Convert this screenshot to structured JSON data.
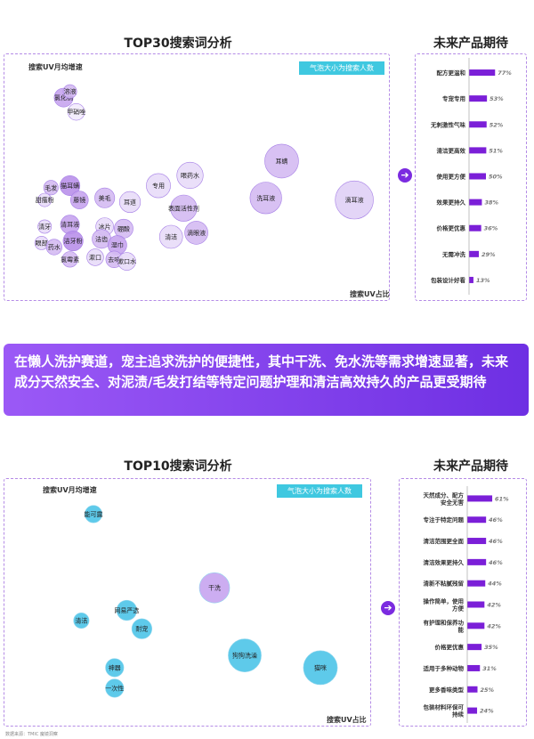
{
  "top30": {
    "title": "TOP30搜索词分析",
    "tag": "气泡大小为搜索人数",
    "ylabel": "搜索UV月均增速",
    "xlabel": "搜索UV占比"
  },
  "expect1": {
    "title": "未来产品期待",
    "items": [
      {
        "label": "配方更温和",
        "value": "77%",
        "v": 77
      },
      {
        "label": "专宠专用",
        "value": "53%",
        "v": 53
      },
      {
        "label": "无刺激性气味",
        "value": "52%",
        "v": 52
      },
      {
        "label": "清洁更高效",
        "value": "51%",
        "v": 51
      },
      {
        "label": "使用更方便",
        "value": "50%",
        "v": 50
      },
      {
        "label": "效果更持久",
        "value": "38%",
        "v": 38
      },
      {
        "label": "价格更优惠",
        "value": "36%",
        "v": 36
      },
      {
        "label": "无需冲洗",
        "value": "29%",
        "v": 29
      },
      {
        "label": "包装设计好看",
        "value": "13%",
        "v": 13
      }
    ]
  },
  "banner": "在懒人洗护赛道，宠主追求洗护的便捷性，其中干洗、免水洗等需求增速显著，未来成分天然安全、对泥渍/毛发打结等特定问题护理和清洁高效持久的产品更受期待",
  "top10": {
    "title": "TOP10搜索词分析",
    "tag": "气泡大小为搜索人数",
    "ylabel": "搜索UV月均增速",
    "xlabel": "搜索UV占比"
  },
  "expect2": {
    "title": "未来产品期待",
    "items": [
      {
        "label": "天然成分、配方安全无害",
        "value": "61%",
        "v": 61
      },
      {
        "label": "专注于特定问题",
        "value": "46%",
        "v": 46
      },
      {
        "label": "清洁范围更全面",
        "value": "46%",
        "v": 46
      },
      {
        "label": "清洁效果更持久",
        "value": "46%",
        "v": 46
      },
      {
        "label": "清新不粘腻残留",
        "value": "44%",
        "v": 44
      },
      {
        "label": "操作简单，使用方便",
        "value": "42%",
        "v": 42
      },
      {
        "label": "有护理和保养功能",
        "value": "42%",
        "v": 42
      },
      {
        "label": "价格更优惠",
        "value": "35%",
        "v": 35
      },
      {
        "label": "适用于多种动物",
        "value": "31%",
        "v": 31
      },
      {
        "label": "更多香味类型",
        "value": "25%",
        "v": 25
      },
      {
        "label": "包装材料环保可持续",
        "value": "24%",
        "v": 24
      }
    ]
  },
  "source": "数据来源：TMIC 魔镜洞察",
  "chart_data": [
    {
      "type": "scatter",
      "title": "TOP30搜索词分析",
      "xlabel": "搜索UV占比",
      "ylabel": "搜索UV月均增速",
      "bubble_size": "搜索人数",
      "points": [
        {
          "label": "氯化钠",
          "x": 0.1,
          "y": 0.88,
          "size": 0.22,
          "color": "#c6a4ee"
        },
        {
          "label": "溶液",
          "x": 0.12,
          "y": 0.91,
          "size": 0.12,
          "color": "#d4baf2"
        },
        {
          "label": "甲硝唑",
          "x": 0.14,
          "y": 0.81,
          "size": 0.18,
          "color": "#f2ebfc"
        },
        {
          "label": "毛发",
          "x": 0.06,
          "y": 0.44,
          "size": 0.14,
          "color": "#d4baf2"
        },
        {
          "label": "猫耳螨",
          "x": 0.12,
          "y": 0.45,
          "size": 0.24,
          "color": "#b990ea"
        },
        {
          "label": "甜瘙粉",
          "x": 0.04,
          "y": 0.38,
          "size": 0.12,
          "color": "#e8dcf8"
        },
        {
          "label": "藤镜",
          "x": 0.15,
          "y": 0.38,
          "size": 0.2,
          "color": "#c6a4ee"
        },
        {
          "label": "美毛",
          "x": 0.23,
          "y": 0.39,
          "size": 0.24,
          "color": "#d4baf2"
        },
        {
          "label": "耳道",
          "x": 0.31,
          "y": 0.37,
          "size": 0.26,
          "color": "#e8dcf8"
        },
        {
          "label": "专用",
          "x": 0.4,
          "y": 0.45,
          "size": 0.32,
          "color": "#e8dcf8"
        },
        {
          "label": "眼药水",
          "x": 0.5,
          "y": 0.5,
          "size": 0.36,
          "color": "#e8dcf8"
        },
        {
          "label": "表面活性剂",
          "x": 0.48,
          "y": 0.34,
          "size": 0.36,
          "color": "#d4baf2"
        },
        {
          "label": "耳螨",
          "x": 0.79,
          "y": 0.57,
          "size": 0.5,
          "color": "#d4baf2"
        },
        {
          "label": "洗耳液",
          "x": 0.74,
          "y": 0.39,
          "size": 0.46,
          "color": "#d4baf2"
        },
        {
          "label": "滴耳液",
          "x": 1.02,
          "y": 0.38,
          "size": 0.58,
          "color": "#e0d0f6"
        },
        {
          "label": "清牙",
          "x": 0.04,
          "y": 0.25,
          "size": 0.12,
          "color": "#e8dcf8"
        },
        {
          "label": "清耳液",
          "x": 0.12,
          "y": 0.26,
          "size": 0.22,
          "color": "#c6a4ee"
        },
        {
          "label": "冰片",
          "x": 0.23,
          "y": 0.25,
          "size": 0.2,
          "color": "#e8dcf8"
        },
        {
          "label": "硼酸",
          "x": 0.29,
          "y": 0.24,
          "size": 0.22,
          "color": "#d4baf2"
        },
        {
          "label": "眼部",
          "x": 0.03,
          "y": 0.17,
          "size": 0.12,
          "color": "#e8dcf8"
        },
        {
          "label": "药水",
          "x": 0.07,
          "y": 0.15,
          "size": 0.16,
          "color": "#d4baf2"
        },
        {
          "label": "洁牙粉",
          "x": 0.13,
          "y": 0.18,
          "size": 0.24,
          "color": "#b990ea"
        },
        {
          "label": "洁齿",
          "x": 0.22,
          "y": 0.19,
          "size": 0.22,
          "color": "#d4baf2"
        },
        {
          "label": "湿巾",
          "x": 0.27,
          "y": 0.16,
          "size": 0.22,
          "color": "#c6a4ee"
        },
        {
          "label": "氯霉素",
          "x": 0.12,
          "y": 0.09,
          "size": 0.16,
          "color": "#d4baf2"
        },
        {
          "label": "漱口",
          "x": 0.2,
          "y": 0.1,
          "size": 0.18,
          "color": "#e8dcf8"
        },
        {
          "label": "去味",
          "x": 0.26,
          "y": 0.09,
          "size": 0.18,
          "color": "#d4baf2"
        },
        {
          "label": "漱口水",
          "x": 0.3,
          "y": 0.08,
          "size": 0.2,
          "color": "#e8dcf8"
        },
        {
          "label": "清洁",
          "x": 0.44,
          "y": 0.2,
          "size": 0.3,
          "color": "#e8dcf8"
        },
        {
          "label": "滴眼液",
          "x": 0.52,
          "y": 0.22,
          "size": 0.3,
          "color": "#d4baf2"
        }
      ]
    },
    {
      "type": "bar",
      "title": "未来产品期待",
      "orientation": "horizontal",
      "categories": [
        "配方更温和",
        "专宠专用",
        "无刺激性气味",
        "清洁更高效",
        "使用更方便",
        "效果更持久",
        "价格更优惠",
        "无需冲洗",
        "包装设计好看"
      ],
      "values": [
        77,
        53,
        52,
        51,
        50,
        38,
        36,
        29,
        13
      ],
      "unit": "%"
    },
    {
      "type": "scatter",
      "title": "TOP10搜索词分析",
      "xlabel": "搜索UV占比",
      "ylabel": "搜索UV月均增速",
      "bubble_size": "搜索人数",
      "points": [
        {
          "label": "能可露",
          "x": 0.1,
          "y": 0.92,
          "size": 0.22,
          "color": "#4cc4e8"
        },
        {
          "label": "干洗",
          "x": 0.5,
          "y": 0.56,
          "size": 0.5,
          "color": "#c7a4ef"
        },
        {
          "label": "网易严选",
          "x": 0.21,
          "y": 0.45,
          "size": 0.28,
          "color": "#4cc4e8"
        },
        {
          "label": "清洁",
          "x": 0.06,
          "y": 0.4,
          "size": 0.18,
          "color": "#4cc4e8"
        },
        {
          "label": "耐宠",
          "x": 0.26,
          "y": 0.36,
          "size": 0.28,
          "color": "#4cc4e8"
        },
        {
          "label": "狗狗洗澡",
          "x": 0.6,
          "y": 0.23,
          "size": 0.56,
          "color": "#4cc4e8"
        },
        {
          "label": "猫咪",
          "x": 0.85,
          "y": 0.17,
          "size": 0.58,
          "color": "#4cc4e8"
        },
        {
          "label": "神器",
          "x": 0.17,
          "y": 0.17,
          "size": 0.24,
          "color": "#4cc4e8"
        },
        {
          "label": "一次性",
          "x": 0.17,
          "y": 0.07,
          "size": 0.24,
          "color": "#4cc4e8"
        }
      ]
    },
    {
      "type": "bar",
      "title": "未来产品期待",
      "orientation": "horizontal",
      "categories": [
        "天然成分、配方安全无害",
        "专注于特定问题",
        "清洁范围更全面",
        "清洁效果更持久",
        "清新不粘腻残留",
        "操作简单，使用方便",
        "有护理和保养功能",
        "价格更优惠",
        "适用于多种动物",
        "更多香味类型",
        "包装材料环保可持续"
      ],
      "values": [
        61,
        46,
        46,
        46,
        44,
        42,
        42,
        35,
        31,
        25,
        24
      ],
      "unit": "%"
    }
  ]
}
